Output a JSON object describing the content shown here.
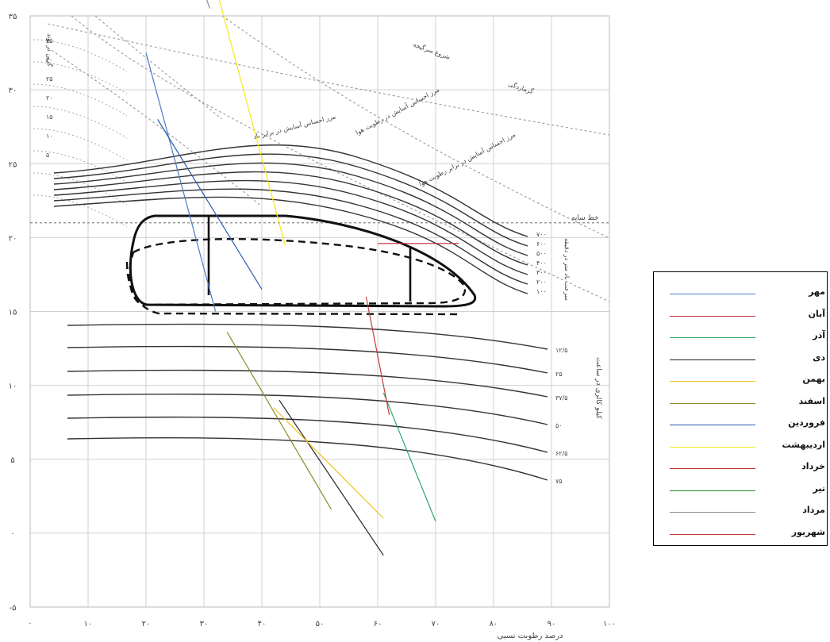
{
  "chart_data": {
    "type": "diagram",
    "axes": {
      "x_ticks": [
        "·",
        "۱۰",
        "۲۰",
        "۳۰",
        "۴۰",
        "۵۰",
        "۶۰",
        "۷۰",
        "۸۰",
        "۹۰",
        "۱۰۰"
      ],
      "y_ticks": [
        "۳۵",
        "۳۰",
        "۲۵",
        "۲۰",
        "۱۵",
        "۱۰",
        "۵",
        "·",
        "-۵"
      ],
      "y_ticks_top": [
        "۳۵",
        "۳۰"
      ],
      "xlabel": "درصد رطوبت نسبی",
      "ylabel": "درجه حرارت",
      "xlim": [
        0,
        100
      ],
      "ylim": [
        -5,
        35
      ]
    },
    "labels": {
      "wind_axis": "سرعت باد متر در دقیقه",
      "radiation_axis": "کیلو کالری در ساعت",
      "shadow_line": "خط سایه",
      "hot_humid": "گرمازدگی",
      "heat_stroke": "شروع سرگیجه",
      "upper_comfort_wind": "مرز احساس آسایش در برابر باد",
      "upper_comfort_humidity": "مرز احساس آسایش در رطوبت هوا",
      "evaporative": "مرز احساس آسایش در برابر رطوبت هوا",
      "grain_per_pound": "گرین در پوند"
    },
    "wind_values": [
      "۷۰۰",
      "۶۰۰",
      "۵۰۰",
      "۴۰۰",
      "۳۰۰",
      "۲۰۰",
      "۱۰۰"
    ],
    "radiation_values": [
      "۱۲/۵",
      "۲۵",
      "۳۷/۵",
      "۵۰",
      "۶۲/۵",
      "۷۵"
    ],
    "vapor_values": [
      "۳۵",
      "۳۰",
      "۲۵",
      "۲۰",
      "۱۵",
      "۱۰",
      "۵"
    ],
    "months": [
      {
        "name": "مهر",
        "color": "#4a7cc8",
        "rh": [
          20,
          32
        ],
        "t": [
          32.5,
          15.0
        ]
      },
      {
        "name": "آبان",
        "color": "#c0292f",
        "rh": [
          60,
          74
        ],
        "t": [
          19.6,
          19.6
        ]
      },
      {
        "name": "آذر",
        "color": "#2ca86a",
        "rh": [
          61,
          70
        ],
        "t": [
          9.5,
          0.8
        ]
      },
      {
        "name": "دی",
        "color": "#222222",
        "rh": [
          43,
          61
        ],
        "t": [
          9.0,
          -1.5
        ]
      },
      {
        "name": "بهمن",
        "color": "#f2c21c",
        "rh": [
          42,
          61
        ],
        "t": [
          8.5,
          1.0
        ]
      },
      {
        "name": "اسفند",
        "color": "#8a8a2e",
        "rh": [
          34,
          52
        ],
        "t": [
          13.6,
          1.6
        ]
      },
      {
        "name": "فروردین",
        "color": "#2d5fb3",
        "rh": [
          22,
          40
        ],
        "t": [
          28.0,
          16.5
        ]
      },
      {
        "name": "اردیبهشت",
        "color": "#f5e81a",
        "rh": [
          31,
          44
        ],
        "t": [
          38.5,
          19.5
        ]
      },
      {
        "name": "خرداد",
        "color": "#c82b2b",
        "rh": [
          24,
          34
        ],
        "t": [
          48.0,
          37.0
        ]
      },
      {
        "name": "تیر",
        "color": "#1f8a2a",
        "rh": [
          14,
          26
        ],
        "t": [
          53.0,
          36.5
        ]
      },
      {
        "name": "مرداد",
        "color": "#8c8c8c",
        "rh": [
          16,
          31
        ],
        "t": [
          53.0,
          35.5
        ]
      },
      {
        "name": "شهریور",
        "color": "#c83c3c",
        "rh": [
          58,
          62
        ],
        "t": [
          16.0,
          8.0
        ]
      }
    ]
  }
}
